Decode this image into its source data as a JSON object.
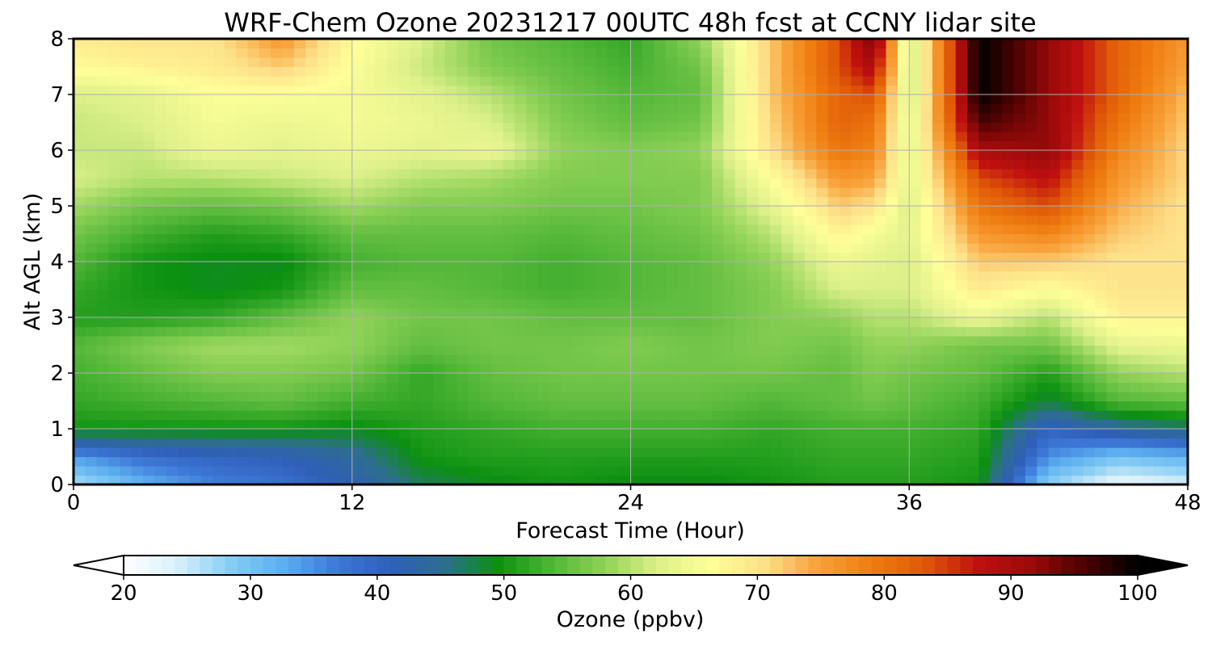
{
  "chart_data": {
    "type": "heatmap",
    "title": "WRF-Chem Ozone  20231217 00UTC 48h fcst at CCNY lidar site",
    "xlabel": "Forecast Time (Hour)",
    "ylabel": "Alt AGL (km)",
    "xlim": [
      0,
      48
    ],
    "ylim": [
      0,
      8
    ],
    "xticks": [
      0,
      12,
      24,
      36,
      48
    ],
    "yticks": [
      0,
      1,
      2,
      3,
      4,
      5,
      6,
      7,
      8
    ],
    "grid": true,
    "x": [
      0,
      3,
      6,
      9,
      12,
      15,
      18,
      21,
      24,
      27,
      30,
      33,
      34.5,
      36,
      39,
      42,
      45,
      48
    ],
    "y": [
      0,
      0.5,
      1,
      1.5,
      2,
      2.5,
      3,
      3.5,
      4,
      4.5,
      5,
      5.5,
      6,
      6.5,
      7,
      7.5,
      8
    ],
    "z": [
      [
        26,
        32,
        36,
        38,
        42,
        47,
        49,
        50,
        49,
        49,
        50,
        51,
        51,
        51,
        50,
        28,
        22,
        24
      ],
      [
        34,
        38,
        40,
        41,
        44,
        50,
        51,
        51,
        51,
        51,
        51,
        52,
        52,
        52,
        51,
        35,
        30,
        32
      ],
      [
        50,
        50,
        50,
        50,
        49,
        51,
        52,
        53,
        53,
        53,
        52,
        53,
        53,
        53,
        52,
        40,
        44,
        46
      ],
      [
        52,
        53,
        54,
        55,
        53,
        52,
        54,
        55,
        55,
        55,
        54,
        55,
        56,
        55,
        53,
        48,
        54,
        55
      ],
      [
        53,
        55,
        57,
        57,
        56,
        52,
        55,
        56,
        56,
        56,
        56,
        55,
        57,
        56,
        55,
        51,
        58,
        60
      ],
      [
        54,
        57,
        59,
        59,
        58,
        55,
        56,
        56,
        57,
        56,
        57,
        56,
        58,
        58,
        56,
        56,
        63,
        64
      ],
      [
        51,
        51,
        52,
        55,
        58,
        56,
        56,
        55,
        55,
        55,
        57,
        58,
        60,
        60,
        64,
        60,
        68,
        68
      ],
      [
        52,
        50,
        49,
        50,
        55,
        55,
        54,
        53,
        54,
        55,
        57,
        62,
        62,
        62,
        69,
        66,
        70,
        70
      ],
      [
        54,
        50,
        49,
        49,
        53,
        54,
        54,
        53,
        54,
        55,
        58,
        64,
        63,
        62,
        72,
        72,
        70,
        70
      ],
      [
        56,
        53,
        51,
        52,
        55,
        55,
        55,
        54,
        55,
        56,
        60,
        68,
        65,
        63,
        76,
        78,
        72,
        70
      ],
      [
        59,
        56,
        55,
        56,
        59,
        57,
        57,
        56,
        56,
        57,
        63,
        72,
        70,
        62,
        80,
        84,
        74,
        70
      ],
      [
        62,
        60,
        60,
        61,
        62,
        60,
        59,
        57,
        57,
        57,
        66,
        76,
        75,
        63,
        84,
        88,
        76,
        71
      ],
      [
        61,
        61,
        64,
        63,
        64,
        63,
        64,
        58,
        57,
        58,
        70,
        80,
        78,
        62,
        90,
        92,
        78,
        71
      ],
      [
        61,
        62,
        65,
        64,
        65,
        64,
        62,
        57,
        55,
        56,
        71,
        82,
        80,
        62,
        96,
        92,
        80,
        72
      ],
      [
        62,
        63,
        66,
        66,
        65,
        63,
        60,
        56,
        54,
        55,
        72,
        82,
        84,
        60,
        100,
        92,
        82,
        73
      ],
      [
        67,
        68,
        69,
        72,
        66,
        61,
        57,
        55,
        53,
        56,
        72,
        84,
        90,
        60,
        100,
        92,
        82,
        75
      ],
      [
        69,
        70,
        70,
        76,
        67,
        62,
        56,
        54,
        52,
        58,
        72,
        84,
        94,
        60,
        100,
        92,
        82,
        76
      ]
    ],
    "colorbar": {
      "label": "Ozone  (ppbv)",
      "min": 20,
      "max": 100,
      "ticks": [
        20,
        30,
        40,
        50,
        60,
        70,
        80,
        90,
        100
      ],
      "extend": "both",
      "colors": [
        "#ffffff",
        "#d9f0fb",
        "#87cdf4",
        "#5caef0",
        "#3d78d8",
        "#2f5fb8",
        "#2e6e8e",
        "#0b9010",
        "#4fb536",
        "#8fd258",
        "#ddf08a",
        "#ffff99",
        "#fde08a",
        "#f8a23a",
        "#ef7d10",
        "#e05a08",
        "#c01010",
        "#9b0a0a",
        "#4a0202",
        "#000000"
      ]
    }
  }
}
